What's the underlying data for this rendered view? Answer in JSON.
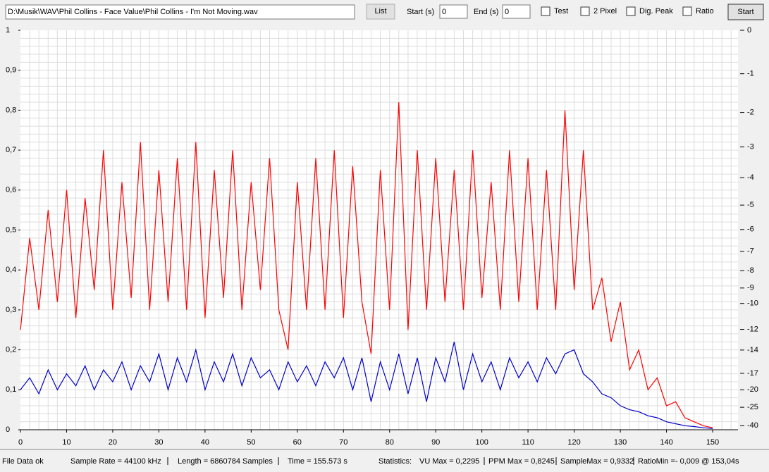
{
  "toolbar": {
    "file_path": "D:\\Musik\\WAV\\Phil Collins - Face Value\\Phil Collins - I'm Not Moving.wav",
    "list_button": "List",
    "start_label": "Start (s)",
    "start_value": "0",
    "end_label": "End (s)",
    "end_value": "0",
    "checkboxes": [
      "Test",
      "2 Pixel",
      "Dig. Peak",
      "Ratio"
    ],
    "start_button": "Start"
  },
  "chart_data": {
    "type": "line",
    "x": [
      0,
      2,
      4,
      6,
      8,
      10,
      12,
      14,
      16,
      18,
      20,
      22,
      24,
      26,
      28,
      30,
      32,
      34,
      36,
      38,
      40,
      42,
      44,
      46,
      48,
      50,
      52,
      54,
      56,
      58,
      60,
      62,
      64,
      66,
      68,
      70,
      72,
      74,
      76,
      78,
      80,
      82,
      84,
      86,
      88,
      90,
      92,
      94,
      96,
      98,
      100,
      102,
      104,
      106,
      108,
      110,
      112,
      114,
      116,
      118,
      120,
      122,
      124,
      126,
      128,
      130,
      132,
      134,
      136,
      138,
      140,
      142,
      144,
      146,
      148,
      150
    ],
    "series": [
      {
        "color": "#ff0000",
        "values": [
          0.25,
          0.48,
          0.3,
          0.55,
          0.32,
          0.6,
          0.28,
          0.58,
          0.35,
          0.7,
          0.3,
          0.62,
          0.33,
          0.72,
          0.3,
          0.65,
          0.32,
          0.68,
          0.3,
          0.72,
          0.28,
          0.65,
          0.33,
          0.7,
          0.3,
          0.62,
          0.35,
          0.68,
          0.3,
          0.2,
          0.62,
          0.3,
          0.68,
          0.3,
          0.7,
          0.28,
          0.66,
          0.32,
          0.19,
          0.65,
          0.3,
          0.82,
          0.25,
          0.7,
          0.3,
          0.68,
          0.32,
          0.65,
          0.3,
          0.7,
          0.33,
          0.62,
          0.3,
          0.7,
          0.32,
          0.68,
          0.3,
          0.65,
          0.3,
          0.8,
          0.35,
          0.7,
          0.3,
          0.38,
          0.22,
          0.32,
          0.15,
          0.2,
          0.1,
          0.13,
          0.06,
          0.07,
          0.03,
          0.02,
          0.01,
          0.005
        ]
      },
      {
        "color": "#0000cc",
        "values": [
          0.1,
          0.13,
          0.09,
          0.15,
          0.1,
          0.14,
          0.11,
          0.16,
          0.1,
          0.15,
          0.12,
          0.17,
          0.1,
          0.16,
          0.12,
          0.19,
          0.1,
          0.18,
          0.12,
          0.2,
          0.1,
          0.17,
          0.12,
          0.19,
          0.11,
          0.18,
          0.13,
          0.15,
          0.1,
          0.17,
          0.12,
          0.16,
          0.11,
          0.17,
          0.13,
          0.18,
          0.1,
          0.18,
          0.07,
          0.17,
          0.1,
          0.19,
          0.09,
          0.18,
          0.07,
          0.18,
          0.12,
          0.22,
          0.1,
          0.19,
          0.12,
          0.17,
          0.1,
          0.18,
          0.13,
          0.17,
          0.12,
          0.18,
          0.14,
          0.19,
          0.2,
          0.14,
          0.12,
          0.09,
          0.08,
          0.06,
          0.05,
          0.045,
          0.035,
          0.03,
          0.02,
          0.015,
          0.01,
          0.008,
          0.005,
          0.003
        ]
      }
    ],
    "xlim": [
      0,
      155.5
    ],
    "xticks": [
      0,
      10,
      20,
      30,
      40,
      50,
      60,
      70,
      80,
      90,
      100,
      110,
      120,
      130,
      140,
      150
    ],
    "ylim": [
      0,
      1
    ],
    "yticks": [
      0,
      {
        "value": 0.1,
        "label": "0,1"
      },
      {
        "value": 0.2,
        "label": "0,2"
      },
      {
        "value": 0.3,
        "label": "0,3"
      },
      {
        "value": 0.4,
        "label": "0,4"
      },
      {
        "value": 0.5,
        "label": "0,5"
      },
      {
        "value": 0.6,
        "label": "0,6"
      },
      {
        "value": 0.7,
        "label": "0,7"
      },
      {
        "value": 0.8,
        "label": "0,8"
      },
      {
        "value": 0.9,
        "label": "0,9"
      },
      1
    ],
    "y2scale": "db",
    "y2ticks": [
      0,
      -1,
      -2,
      -3,
      -4,
      -5,
      -6,
      -7,
      -8,
      -9,
      -10,
      -12,
      -14,
      -17,
      -20,
      -25,
      -40
    ],
    "grid_step": [
      2,
      0.02
    ]
  },
  "status_bar": {
    "file_status": "File Data ok",
    "sample_rate": "Sample Rate = 44100 kHz",
    "length": "Length = 6860784 Samples",
    "time": "Time = 155.573 s",
    "statistics_label": "Statistics:",
    "vu_max": "VU Max = 0,2295",
    "ppm_max": "PPM Max = 0,8245",
    "sample_max": "SampleMax = 0,9332",
    "ratio_min": "RatioMin =- 0,009 @ 153,04s"
  }
}
